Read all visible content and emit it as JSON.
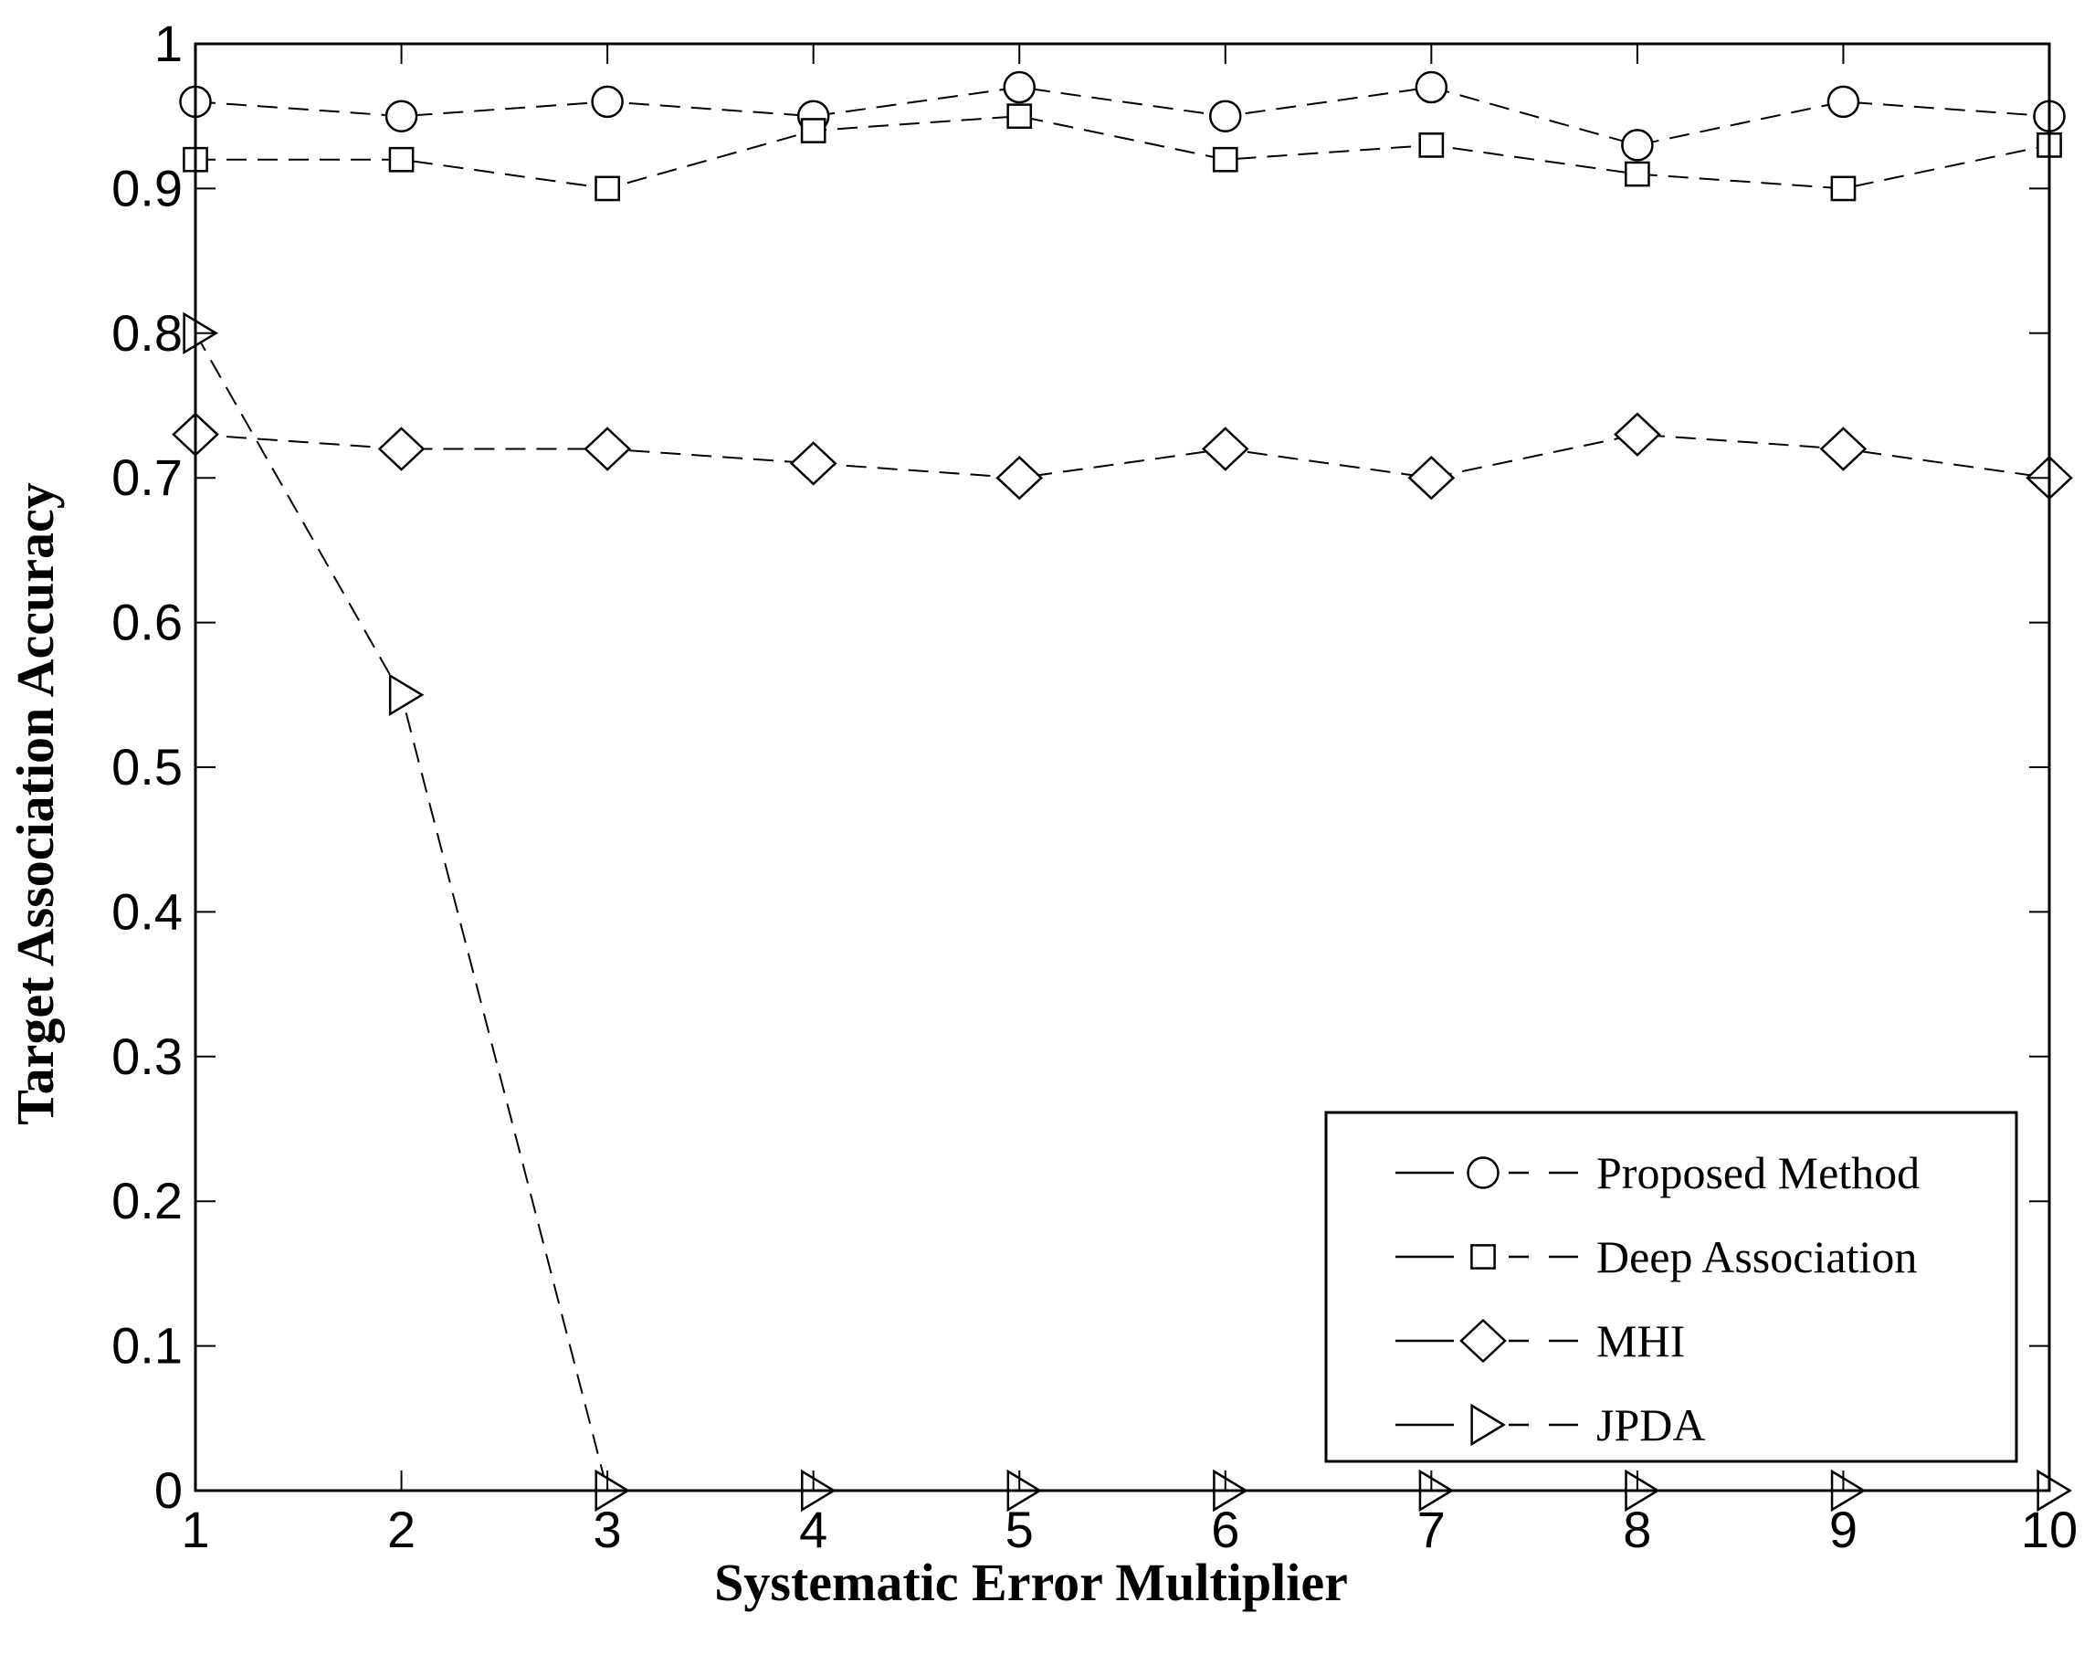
{
  "chart_data": {
    "type": "line",
    "title": "",
    "xlabel": "Systematic Error Multiplier",
    "ylabel": "Target Association Accuracy",
    "xlim": [
      1,
      10
    ],
    "ylim": [
      0,
      1
    ],
    "x": [
      1,
      2,
      3,
      4,
      5,
      6,
      7,
      8,
      9,
      10
    ],
    "x_ticks": [
      "1",
      "2",
      "3",
      "4",
      "5",
      "6",
      "7",
      "8",
      "9",
      "10"
    ],
    "y_ticks": [
      "0",
      "0.1",
      "0.2",
      "0.3",
      "0.4",
      "0.5",
      "0.6",
      "0.7",
      "0.8",
      "0.9",
      "1"
    ],
    "y_tick_values": [
      0,
      0.1,
      0.2,
      0.3,
      0.4,
      0.5,
      0.6,
      0.7,
      0.8,
      0.9,
      1
    ],
    "grid": false,
    "legend_position": "bottom-right",
    "line_style": "dashed",
    "color": "#000000",
    "series": [
      {
        "name": "Proposed Method",
        "marker": "circle",
        "values": [
          0.96,
          0.95,
          0.96,
          0.95,
          0.97,
          0.95,
          0.97,
          0.93,
          0.96,
          0.95
        ]
      },
      {
        "name": "Deep Association",
        "marker": "square",
        "values": [
          0.92,
          0.92,
          0.9,
          0.94,
          0.95,
          0.92,
          0.93,
          0.91,
          0.9,
          0.93
        ]
      },
      {
        "name": "MHI",
        "marker": "diamond",
        "values": [
          0.73,
          0.72,
          0.72,
          0.71,
          0.7,
          0.72,
          0.7,
          0.73,
          0.72,
          0.7
        ]
      },
      {
        "name": "JPDA",
        "marker": "triangle-right",
        "values": [
          0.8,
          0.55,
          0.0,
          0.0,
          0.0,
          0.0,
          0.0,
          0.0,
          0.0,
          0.0
        ]
      }
    ]
  }
}
